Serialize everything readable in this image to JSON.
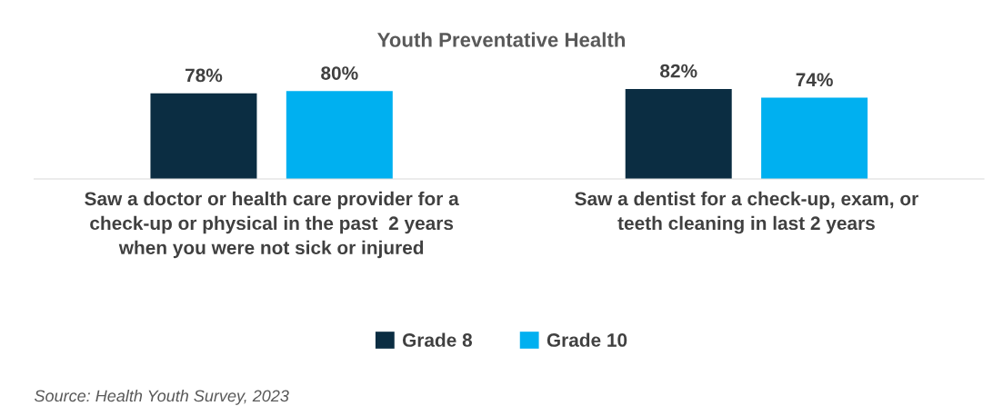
{
  "chart_data": {
    "type": "bar",
    "title": "Youth Preventative Health",
    "categories": [
      "Saw a doctor or health care provider for a\ncheck-up or physical in the past  2 years\nwhen you were not sick or injured",
      "Saw a dentist for a check-up, exam, or\nteeth cleaning in last 2 years"
    ],
    "series": [
      {
        "name": "Grade 8",
        "color": "#0b2d42",
        "values": [
          78,
          82
        ],
        "value_labels": [
          "78%",
          "82%"
        ]
      },
      {
        "name": "Grade 10",
        "color": "#00b0f0",
        "values": [
          80,
          74
        ],
        "value_labels": [
          "80%",
          "74%"
        ]
      }
    ],
    "tick_labels": "x",
    "legend": "bottom",
    "grid": false,
    "annotations": [
      "Source: Health Youth Survey, 2023"
    ]
  }
}
